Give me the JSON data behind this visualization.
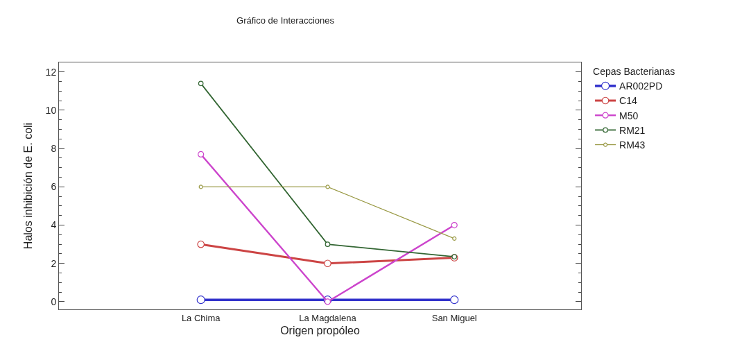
{
  "chart_data": {
    "type": "line",
    "title": "Gráfico de Interacciones",
    "xlabel": "Origen propóleo",
    "ylabel": "Halos inhibición de E. coli",
    "legend_title": "Cepas Bacterianas",
    "categories": [
      "La Chima",
      "La Magdalena",
      "San Miguel"
    ],
    "series": [
      {
        "name": "AR002PD",
        "color": "#3333cc",
        "values": [
          0.1,
          0.1,
          0.1
        ]
      },
      {
        "name": "C14",
        "color": "#cc4444",
        "values": [
          3,
          2,
          2.3
        ]
      },
      {
        "name": "M50",
        "color": "#cc44cc",
        "values": [
          7.7,
          0,
          4
        ]
      },
      {
        "name": "RM21",
        "color": "#336633",
        "values": [
          11.4,
          3,
          2.35
        ]
      },
      {
        "name": "RM43",
        "color": "#999944",
        "values": [
          6,
          6,
          3.3
        ]
      }
    ],
    "ylim": [
      -0.4,
      12.5
    ],
    "yticks": [
      0,
      2,
      4,
      6,
      8,
      10,
      12
    ],
    "legend": "top right",
    "marker": "circle",
    "line_style": "solid"
  }
}
